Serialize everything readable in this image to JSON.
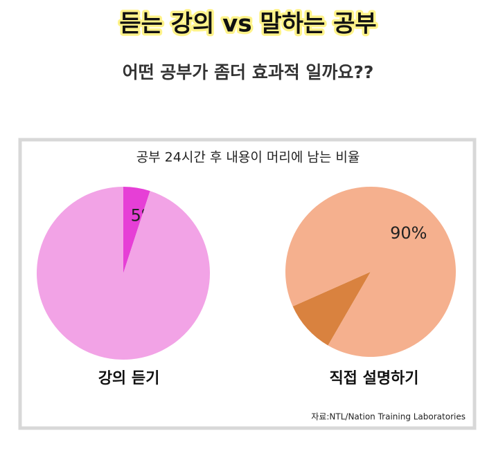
{
  "header": {
    "title": "듣는 강의 vs 말하는 공부",
    "subtitle": "어떤 공부가 좀더 효과적 일까요??"
  },
  "box_title": "공부 24시간 후 내용이 머리에 남는 비율",
  "source": "자료:NTL/Nation Training Laboratories",
  "chart_data": [
    {
      "type": "pie",
      "label": "강의 듣기",
      "values": [
        5,
        95
      ],
      "value_labels": [
        "5%",
        null
      ],
      "colors": [
        "#e63fd6",
        "#f2a3e6"
      ]
    },
    {
      "type": "pie",
      "label": "직접 설명하기",
      "values": [
        10,
        90
      ],
      "value_labels": [
        null,
        "90%"
      ],
      "colors": [
        "#d9823f",
        "#f5b08e"
      ]
    }
  ]
}
